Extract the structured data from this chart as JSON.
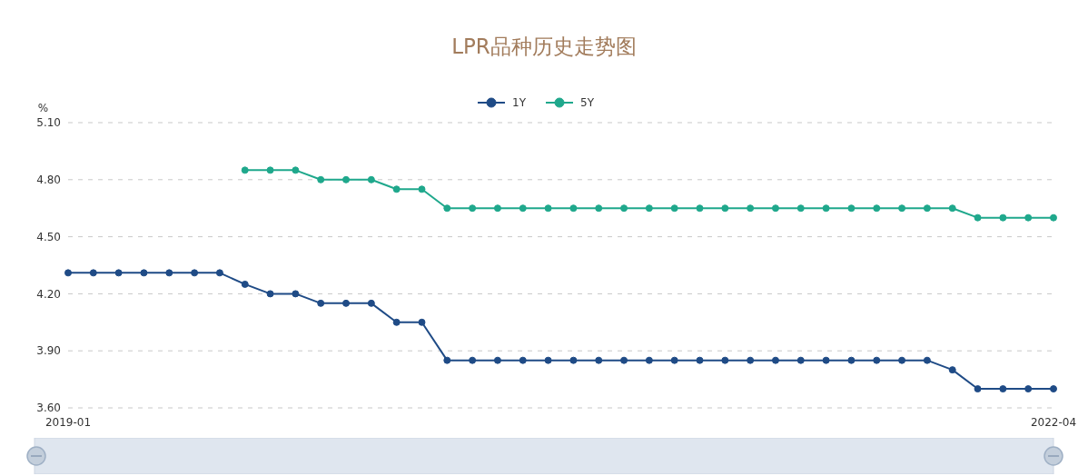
{
  "chart_data": {
    "type": "line",
    "title": "LPR品种历史走势图",
    "ylabel": "%",
    "categories": [
      "2019-01",
      null,
      null,
      null,
      null,
      null,
      null,
      null,
      null,
      null,
      null,
      null,
      null,
      null,
      null,
      null,
      null,
      null,
      null,
      null,
      null,
      null,
      null,
      null,
      null,
      null,
      null,
      null,
      null,
      null,
      null,
      null,
      null,
      null,
      null,
      null,
      null,
      null,
      null,
      "2022-04"
    ],
    "series": [
      {
        "name": "1Y",
        "color": "#1f4b86",
        "values": [
          4.31,
          4.31,
          4.31,
          4.31,
          4.31,
          4.31,
          4.31,
          4.25,
          4.2,
          4.2,
          4.15,
          4.15,
          4.15,
          4.05,
          4.05,
          3.85,
          3.85,
          3.85,
          3.85,
          3.85,
          3.85,
          3.85,
          3.85,
          3.85,
          3.85,
          3.85,
          3.85,
          3.85,
          3.85,
          3.85,
          3.85,
          3.85,
          3.85,
          3.85,
          3.85,
          3.8,
          3.7,
          3.7,
          3.7,
          3.7
        ]
      },
      {
        "name": "5Y",
        "color": "#1fa88c",
        "values": [
          null,
          null,
          null,
          null,
          null,
          null,
          null,
          4.85,
          4.85,
          4.85,
          4.8,
          4.8,
          4.8,
          4.75,
          4.75,
          4.65,
          4.65,
          4.65,
          4.65,
          4.65,
          4.65,
          4.65,
          4.65,
          4.65,
          4.65,
          4.65,
          4.65,
          4.65,
          4.65,
          4.65,
          4.65,
          4.65,
          4.65,
          4.65,
          4.65,
          4.65,
          4.6,
          4.6,
          4.6,
          4.6
        ]
      }
    ],
    "ylim": [
      3.6,
      5.1
    ],
    "yticks": [
      {
        "value": 3.6,
        "label": "3.60"
      },
      {
        "value": 3.9,
        "label": "3.90"
      },
      {
        "value": 4.2,
        "label": "4.20"
      },
      {
        "value": 4.5,
        "label": "4.50"
      },
      {
        "value": 4.8,
        "label": "4.80"
      },
      {
        "value": 5.1,
        "label": "5.10"
      }
    ],
    "grid": "y",
    "legend": "top",
    "marker": "circle",
    "line_style": "solid"
  }
}
